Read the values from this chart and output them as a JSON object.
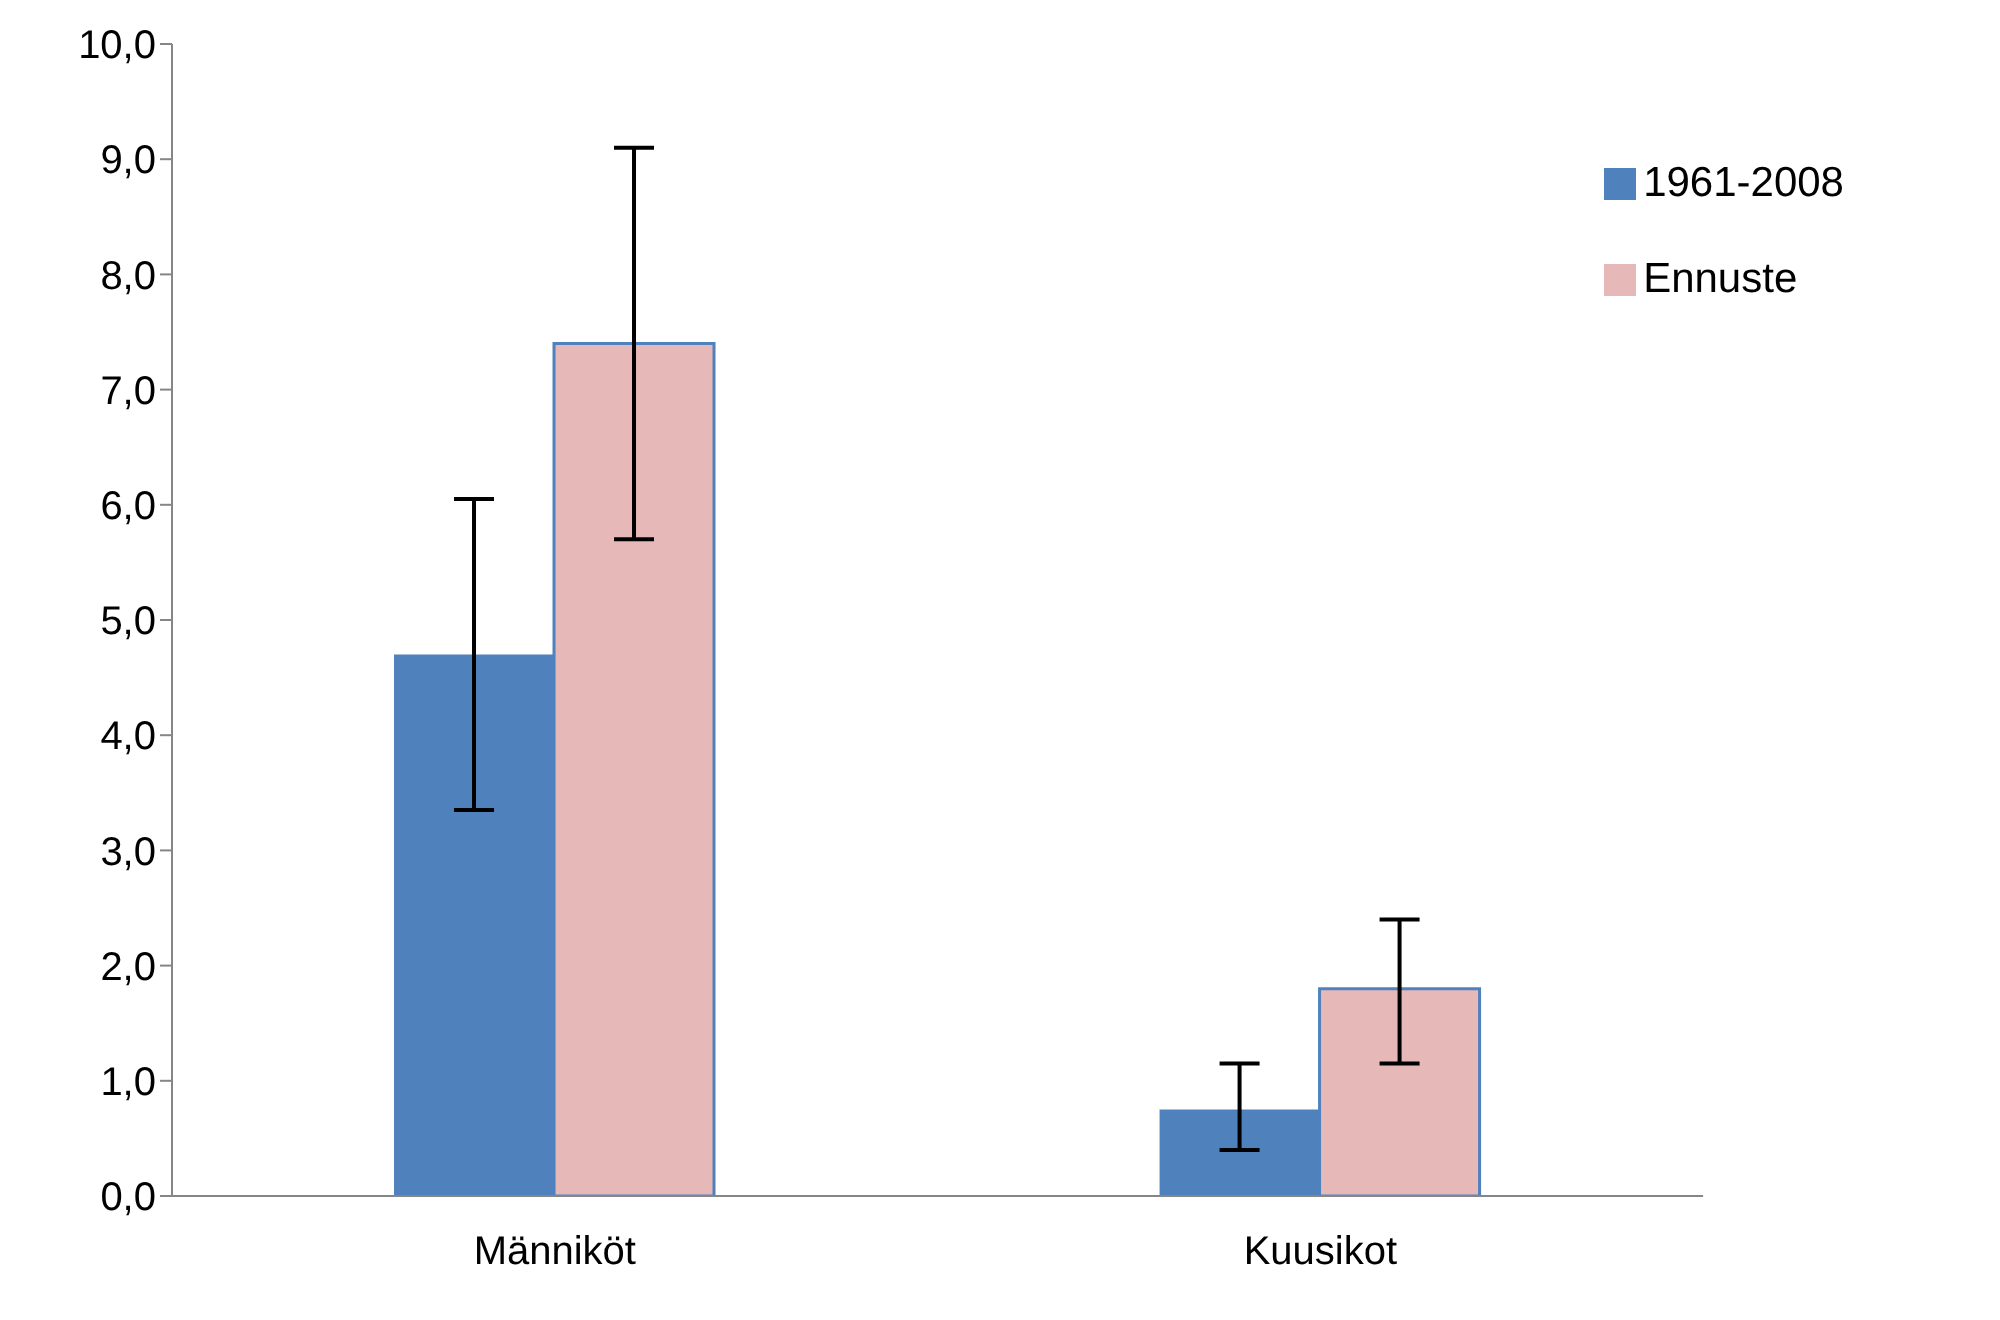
{
  "chart_data": {
    "type": "bar",
    "categories": [
      "Männiköt",
      "Kuusikot"
    ],
    "series": [
      {
        "name": "1961-2008",
        "color": "#4f81bd",
        "values": [
          4.7,
          0.75
        ],
        "errors": [
          [
            3.35,
            6.05
          ],
          [
            0.4,
            1.15
          ]
        ]
      },
      {
        "name": "Ennuste",
        "color": "#e6b9b8",
        "values": [
          7.4,
          1.8
        ],
        "errors": [
          [
            5.7,
            9.1
          ],
          [
            1.15,
            2.4
          ]
        ]
      }
    ],
    "ylim": [
      0,
      10
    ],
    "yticks": [
      {
        "value": 0,
        "label": "0,0"
      },
      {
        "value": 1,
        "label": "1,0"
      },
      {
        "value": 2,
        "label": "2,0"
      },
      {
        "value": 3,
        "label": "3,0"
      },
      {
        "value": 4,
        "label": "4,0"
      },
      {
        "value": 5,
        "label": "5,0"
      },
      {
        "value": 6,
        "label": "6,0"
      },
      {
        "value": 7,
        "label": "7,0"
      },
      {
        "value": 8,
        "label": "8,0"
      },
      {
        "value": 9,
        "label": "9,0"
      },
      {
        "value": 10,
        "label": "10,0"
      }
    ],
    "grid": false,
    "legend": "top right"
  }
}
